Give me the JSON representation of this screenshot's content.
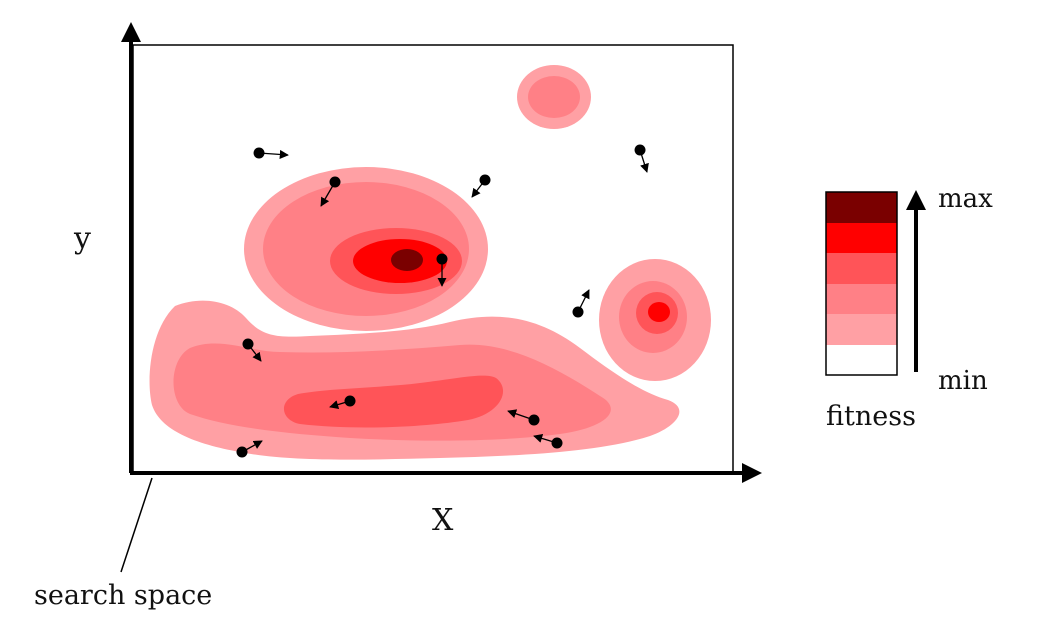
{
  "labels": {
    "x_axis": "X",
    "y_axis": "y",
    "search_space": "search space",
    "legend_max": "max",
    "legend_min": "min",
    "legend_title": "fitness"
  },
  "colors": {
    "level1": "#ffa0a4",
    "level2": "#ff8086",
    "level3": "#ff5458",
    "level4": "#ff0000",
    "level5": "#7a0000",
    "particle": "#000000",
    "frame": "#000000"
  },
  "legend_levels": [
    "max",
    "",
    "",
    "",
    "",
    "min"
  ]
}
